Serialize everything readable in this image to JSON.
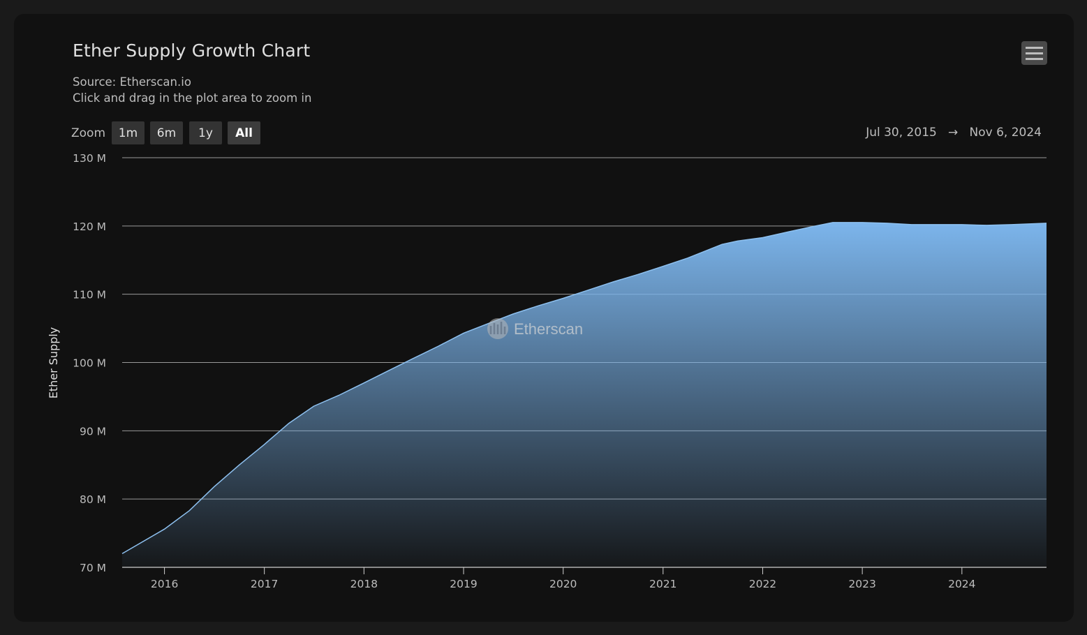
{
  "title": "Ether Supply Growth Chart",
  "subtitle_line1": "Source: Etherscan.io",
  "subtitle_line2": "Click and drag in the plot area to zoom in",
  "zoom": {
    "label": "Zoom",
    "buttons": [
      "1m",
      "6m",
      "1y",
      "All"
    ],
    "active": "All"
  },
  "range": {
    "from": "Jul 30, 2015",
    "arrow": "→",
    "to": "Nov 6, 2024"
  },
  "watermark": "Etherscan",
  "colors": {
    "area_top": "#7cb5ec",
    "line": "#8ec1f0",
    "gridline": "#9a9a9a",
    "background": "#111111"
  },
  "chart_data": {
    "type": "area",
    "title": "Ether Supply Growth Chart",
    "ylabel": "Ether Supply",
    "xlabel": "",
    "ylim": [
      70,
      130
    ],
    "xlim": [
      "2015-07-30",
      "2024-11-06"
    ],
    "yticks": [
      70,
      80,
      90,
      100,
      110,
      120,
      130
    ],
    "ytick_labels": [
      "70 M",
      "80 M",
      "90 M",
      "100 M",
      "110 M",
      "120 M",
      "130 M"
    ],
    "xticks": [
      "2016-01-01",
      "2017-01-01",
      "2018-01-01",
      "2019-01-01",
      "2020-01-01",
      "2021-01-01",
      "2022-01-01",
      "2023-01-01",
      "2024-01-01"
    ],
    "xtick_labels": [
      "2016",
      "2017",
      "2018",
      "2019",
      "2020",
      "2021",
      "2022",
      "2023",
      "2024"
    ],
    "grid": true,
    "series": [
      {
        "name": "Ether Supply",
        "points": [
          [
            "2015-07-30",
            72.0
          ],
          [
            "2016-01-01",
            75.6
          ],
          [
            "2016-04-01",
            78.3
          ],
          [
            "2016-07-01",
            81.8
          ],
          [
            "2016-10-01",
            85.0
          ],
          [
            "2017-01-01",
            88.0
          ],
          [
            "2017-04-01",
            91.1
          ],
          [
            "2017-07-01",
            93.6
          ],
          [
            "2017-10-01",
            95.2
          ],
          [
            "2018-01-01",
            97.0
          ],
          [
            "2018-04-01",
            98.8
          ],
          [
            "2018-07-01",
            100.6
          ],
          [
            "2018-10-01",
            102.4
          ],
          [
            "2019-01-01",
            104.3
          ],
          [
            "2019-04-01",
            105.7
          ],
          [
            "2019-07-01",
            107.1
          ],
          [
            "2019-10-01",
            108.3
          ],
          [
            "2020-01-01",
            109.4
          ],
          [
            "2020-04-01",
            110.6
          ],
          [
            "2020-07-01",
            111.8
          ],
          [
            "2020-10-01",
            112.9
          ],
          [
            "2021-01-01",
            114.1
          ],
          [
            "2021-04-01",
            115.3
          ],
          [
            "2021-08-05",
            117.3
          ],
          [
            "2021-10-01",
            117.8
          ],
          [
            "2022-01-01",
            118.3
          ],
          [
            "2022-04-01",
            119.1
          ],
          [
            "2022-07-01",
            119.9
          ],
          [
            "2022-09-15",
            120.5
          ],
          [
            "2023-01-01",
            120.5
          ],
          [
            "2023-04-01",
            120.4
          ],
          [
            "2023-07-01",
            120.2
          ],
          [
            "2023-10-01",
            120.2
          ],
          [
            "2024-01-01",
            120.2
          ],
          [
            "2024-04-01",
            120.1
          ],
          [
            "2024-07-01",
            120.2
          ],
          [
            "2024-11-06",
            120.4
          ]
        ]
      }
    ]
  }
}
